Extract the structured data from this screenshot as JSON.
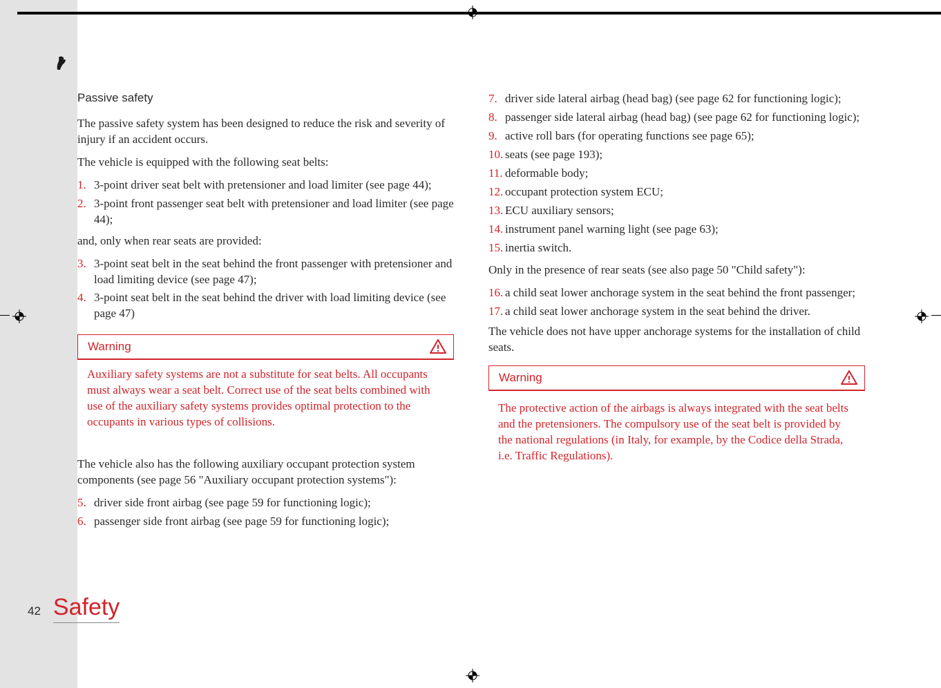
{
  "page": {
    "number": "42",
    "section": "Safety",
    "background_color": "#ffffff",
    "sidebar_color": "#e3e3e3",
    "accent_color": "#d2232a",
    "text_color": "#2a2a2a"
  },
  "column1": {
    "heading": "Passive safety",
    "intro": "The passive safety system has been designed to reduce the risk and severity of injury if an accident occurs.",
    "belts_intro": "The vehicle is equipped with the following seat belts:",
    "items_a": [
      {
        "n": "1.",
        "t": "3-point driver seat belt with pretensioner and load limiter (see page 44);"
      },
      {
        "n": "2.",
        "t": "3-point front passenger seat belt with pretensioner and load limiter (see page 44);"
      }
    ],
    "rear_intro": "and, only when rear seats are provided:",
    "items_b": [
      {
        "n": "3.",
        "t": "3-point seat belt in the seat behind the front passenger with pretensioner and load limiting device (see page 47);"
      },
      {
        "n": "4.",
        "t": "3-point seat belt in the seat behind the driver with load limiting device (see page 47)"
      }
    ],
    "warning_title": "Warning",
    "warning_body": "Auxiliary safety systems are not a substitute for seat belts. All occupants must always wear a seat belt. Correct use of the seat belts combined with use of the auxiliary safety systems provides optimal protection to the occupants in various types of collisions.",
    "aux_intro": "The vehicle also has the following auxiliary occupant protection system components (see page 56 \"Auxiliary occupant protection systems\"):",
    "items_c": [
      {
        "n": "5.",
        "t": "driver side front airbag (see page 59 for functioning logic);"
      },
      {
        "n": "6.",
        "t": "passenger side front airbag (see page 59 for functioning logic);"
      }
    ]
  },
  "column2": {
    "items_d": [
      {
        "n": "7.",
        "t": "driver side lateral airbag (head bag) (see page 62 for functioning logic);"
      },
      {
        "n": "8.",
        "t": "passenger side lateral airbag (head bag) (see page 62 for functioning logic);"
      },
      {
        "n": "9.",
        "t": "active roll bars (for operating functions see page 65);"
      },
      {
        "n": "10.",
        "t": "seats (see page 193);"
      },
      {
        "n": "11.",
        "t": "deformable body;"
      },
      {
        "n": "12.",
        "t": "occupant protection system ECU;"
      },
      {
        "n": "13.",
        "t": "ECU auxiliary sensors;"
      },
      {
        "n": "14.",
        "t": "instrument panel warning light (see page 63);"
      },
      {
        "n": "15.",
        "t": "inertia switch."
      }
    ],
    "rear_only": "Only in the presence of rear seats (see also page 50 \"Child safety\"):",
    "items_e": [
      {
        "n": "16.",
        "t": "a child seat lower anchorage system in the seat behind the front passenger;"
      },
      {
        "n": "17.",
        "t": "a child seat lower anchorage system in the seat behind the driver."
      }
    ],
    "no_upper": "The vehicle does not have upper anchorage systems for the installation of child seats.",
    "warning_title": "Warning",
    "warning_body": "The protective action of the airbags is always integrated with the seat belts and the pretensioners. The compulsory use of the seat belt is provided by the national regulations (in Italy, for example, by the Codice della Strada, i.e. Traffic Regulations)."
  }
}
